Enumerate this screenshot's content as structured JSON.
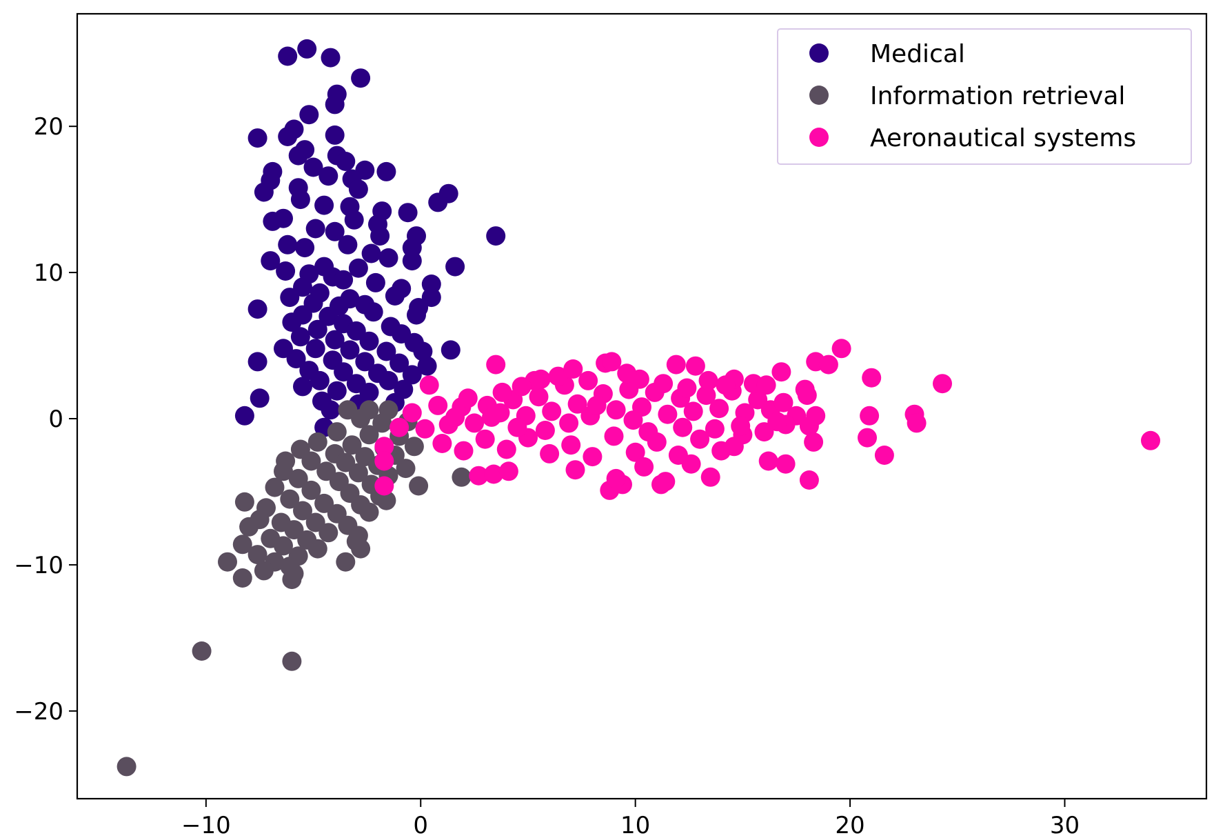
{
  "chart_data": {
    "type": "scatter",
    "title": "",
    "xlabel": "",
    "ylabel": "",
    "xlim": [
      -16,
      36.6
    ],
    "ylim": [
      -26,
      27.7
    ],
    "xticks": [
      -10,
      0,
      10,
      20,
      30
    ],
    "yticks": [
      -20,
      -10,
      0,
      10,
      20
    ],
    "xtick_labels": [
      "−10",
      "0",
      "10",
      "20",
      "30"
    ],
    "ytick_labels": [
      "−20",
      "−10",
      "0",
      "10",
      "20"
    ],
    "grid": false,
    "legend_position": "top-right",
    "series": [
      {
        "name": "Medical",
        "color": "#2a0082",
        "points": [
          [
            -5.3,
            25.3
          ],
          [
            -6.2,
            24.8
          ],
          [
            -4.2,
            24.7
          ],
          [
            -2.8,
            23.3
          ],
          [
            -3.9,
            22.2
          ],
          [
            -4.0,
            21.5
          ],
          [
            -5.2,
            20.8
          ],
          [
            -5.9,
            19.8
          ],
          [
            -6.2,
            19.3
          ],
          [
            -7.6,
            19.2
          ],
          [
            -4.0,
            19.4
          ],
          [
            -5.4,
            18.4
          ],
          [
            -5.7,
            18.0
          ],
          [
            -3.9,
            18.0
          ],
          [
            -3.5,
            17.6
          ],
          [
            -6.9,
            16.9
          ],
          [
            -5.0,
            17.2
          ],
          [
            -2.6,
            17.0
          ],
          [
            -1.6,
            16.9
          ],
          [
            -7.0,
            16.3
          ],
          [
            -4.3,
            16.6
          ],
          [
            -3.2,
            16.4
          ],
          [
            -5.7,
            15.8
          ],
          [
            -2.9,
            15.7
          ],
          [
            -7.3,
            15.5
          ],
          [
            -5.6,
            15.0
          ],
          [
            1.3,
            15.4
          ],
          [
            0.8,
            14.8
          ],
          [
            -4.5,
            14.6
          ],
          [
            -3.3,
            14.5
          ],
          [
            -1.8,
            14.2
          ],
          [
            -0.6,
            14.1
          ],
          [
            -6.4,
            13.7
          ],
          [
            -6.9,
            13.5
          ],
          [
            -3.1,
            13.6
          ],
          [
            -2.0,
            13.3
          ],
          [
            -4.9,
            13.0
          ],
          [
            -4.0,
            12.8
          ],
          [
            -1.9,
            12.5
          ],
          [
            -0.2,
            12.5
          ],
          [
            3.5,
            12.5
          ],
          [
            -6.2,
            11.9
          ],
          [
            -5.4,
            11.7
          ],
          [
            -3.4,
            11.9
          ],
          [
            -0.4,
            11.7
          ],
          [
            -2.3,
            11.3
          ],
          [
            -1.5,
            11.0
          ],
          [
            -0.4,
            10.8
          ],
          [
            -7.0,
            10.8
          ],
          [
            -6.3,
            10.1
          ],
          [
            -4.5,
            10.4
          ],
          [
            -2.9,
            10.3
          ],
          [
            1.6,
            10.4
          ],
          [
            -5.2,
            9.9
          ],
          [
            -4.1,
            9.7
          ],
          [
            -3.6,
            9.5
          ],
          [
            -2.1,
            9.3
          ],
          [
            -5.5,
            9.0
          ],
          [
            0.5,
            9.2
          ],
          [
            -0.9,
            8.9
          ],
          [
            -6.1,
            8.3
          ],
          [
            -4.7,
            8.6
          ],
          [
            -3.3,
            8.2
          ],
          [
            -1.2,
            8.4
          ],
          [
            0.5,
            8.3
          ],
          [
            -5.0,
            7.9
          ],
          [
            -3.8,
            7.7
          ],
          [
            -2.6,
            7.8
          ],
          [
            -0.1,
            7.6
          ],
          [
            -7.6,
            7.5
          ],
          [
            -5.5,
            7.1
          ],
          [
            -4.3,
            7.0
          ],
          [
            -2.2,
            7.3
          ],
          [
            -0.2,
            7.1
          ],
          [
            -6.0,
            6.6
          ],
          [
            -3.6,
            6.5
          ],
          [
            -1.4,
            6.3
          ],
          [
            -4.8,
            6.1
          ],
          [
            -3.0,
            6.0
          ],
          [
            -0.9,
            5.8
          ],
          [
            -5.6,
            5.6
          ],
          [
            -4.0,
            5.4
          ],
          [
            -2.4,
            5.3
          ],
          [
            -0.3,
            5.2
          ],
          [
            -6.4,
            4.8
          ],
          [
            -4.9,
            4.8
          ],
          [
            -3.3,
            4.7
          ],
          [
            -1.6,
            4.6
          ],
          [
            1.4,
            4.7
          ],
          [
            0.1,
            4.6
          ],
          [
            -5.8,
            4.1
          ],
          [
            -4.1,
            4.0
          ],
          [
            -2.6,
            3.9
          ],
          [
            -1.0,
            3.8
          ],
          [
            -7.6,
            3.9
          ],
          [
            0.3,
            3.6
          ],
          [
            -5.2,
            3.3
          ],
          [
            -3.6,
            3.2
          ],
          [
            -2.0,
            3.1
          ],
          [
            -0.4,
            3.0
          ],
          [
            -4.7,
            2.6
          ],
          [
            -3.0,
            2.4
          ],
          [
            -1.5,
            2.6
          ],
          [
            -5.5,
            2.2
          ],
          [
            -3.9,
            1.9
          ],
          [
            -2.4,
            1.8
          ],
          [
            -0.8,
            2.0
          ],
          [
            -7.5,
            1.4
          ],
          [
            -4.6,
            1.2
          ],
          [
            -2.9,
            1.0
          ],
          [
            -1.2,
            1.1
          ],
          [
            -4.2,
            0.6
          ],
          [
            -8.2,
            0.2
          ],
          [
            -4.5,
            -0.6
          ]
        ]
      },
      {
        "name": "Information retrieval",
        "color": "#5a4e5e",
        "points": [
          [
            -3.4,
            0.6
          ],
          [
            -2.4,
            0.6
          ],
          [
            -1.5,
            0.6
          ],
          [
            -2.8,
            0.0
          ],
          [
            -1.8,
            -0.3
          ],
          [
            -0.6,
            -0.2
          ],
          [
            -3.9,
            -0.9
          ],
          [
            -2.4,
            -1.1
          ],
          [
            -1.0,
            -1.2
          ],
          [
            -4.8,
            -1.6
          ],
          [
            -3.2,
            -1.8
          ],
          [
            -1.7,
            -2.0
          ],
          [
            -0.3,
            -1.9
          ],
          [
            -5.6,
            -2.1
          ],
          [
            -4.0,
            -2.4
          ],
          [
            -2.6,
            -2.6
          ],
          [
            -1.2,
            -2.5
          ],
          [
            -5.1,
            -2.9
          ],
          [
            -3.5,
            -3.0
          ],
          [
            -2.0,
            -3.2
          ],
          [
            -0.7,
            -3.4
          ],
          [
            -6.3,
            -2.9
          ],
          [
            -4.4,
            -3.6
          ],
          [
            -2.9,
            -3.7
          ],
          [
            -1.5,
            -3.9
          ],
          [
            -6.4,
            -3.6
          ],
          [
            -5.7,
            -4.1
          ],
          [
            -3.8,
            -4.3
          ],
          [
            -2.3,
            -4.5
          ],
          [
            -0.1,
            -4.6
          ],
          [
            1.9,
            -4.0
          ],
          [
            -6.8,
            -4.7
          ],
          [
            -5.1,
            -4.9
          ],
          [
            -3.3,
            -5.1
          ],
          [
            -1.9,
            -5.3
          ],
          [
            -8.2,
            -5.7
          ],
          [
            -6.1,
            -5.5
          ],
          [
            -4.5,
            -5.8
          ],
          [
            -2.8,
            -5.9
          ],
          [
            -1.6,
            -5.6
          ],
          [
            -7.2,
            -6.1
          ],
          [
            -5.5,
            -6.3
          ],
          [
            -3.9,
            -6.5
          ],
          [
            -2.4,
            -6.4
          ],
          [
            -7.5,
            -6.9
          ],
          [
            -6.5,
            -7.1
          ],
          [
            -4.9,
            -7.1
          ],
          [
            -3.4,
            -7.3
          ],
          [
            -8.0,
            -7.4
          ],
          [
            -5.9,
            -7.6
          ],
          [
            -4.3,
            -7.8
          ],
          [
            -2.9,
            -8.0
          ],
          [
            -7.0,
            -8.2
          ],
          [
            -5.3,
            -8.3
          ],
          [
            -3.0,
            -8.4
          ],
          [
            -8.3,
            -8.6
          ],
          [
            -6.4,
            -8.7
          ],
          [
            -4.8,
            -8.9
          ],
          [
            -2.8,
            -8.9
          ],
          [
            -7.6,
            -9.3
          ],
          [
            -5.7,
            -9.4
          ],
          [
            -6.8,
            -9.8
          ],
          [
            -9.0,
            -9.8
          ],
          [
            -3.5,
            -9.8
          ],
          [
            -6.1,
            -10.1
          ],
          [
            -7.3,
            -10.4
          ],
          [
            -5.9,
            -10.6
          ],
          [
            -8.3,
            -10.9
          ],
          [
            -6.0,
            -11.0
          ],
          [
            -10.2,
            -15.9
          ],
          [
            -6.0,
            -16.6
          ],
          [
            -13.7,
            -23.8
          ]
        ]
      },
      {
        "name": "Aeronautical systems",
        "color": "#ff07a9",
        "points": [
          [
            0.4,
            2.3
          ],
          [
            -1.7,
            -1.9
          ],
          [
            -1.7,
            -2.9
          ],
          [
            -1.7,
            -4.6
          ],
          [
            -1.0,
            -0.6
          ],
          [
            -0.4,
            0.4
          ],
          [
            0.2,
            -0.7
          ],
          [
            0.8,
            0.9
          ],
          [
            1.3,
            -0.4
          ],
          [
            1.9,
            0.8
          ],
          [
            2.5,
            -0.3
          ],
          [
            3.1,
            0.9
          ],
          [
            3.5,
            3.7
          ],
          [
            3.7,
            0.4
          ],
          [
            4.3,
            1.3
          ],
          [
            4.9,
            0.2
          ],
          [
            5.5,
            1.5
          ],
          [
            6.1,
            0.5
          ],
          [
            6.7,
            2.3
          ],
          [
            7.3,
            1.0
          ],
          [
            7.9,
            0.2
          ],
          [
            8.5,
            1.7
          ],
          [
            9.1,
            0.6
          ],
          [
            9.7,
            2.0
          ],
          [
            10.3,
            0.8
          ],
          [
            10.9,
            1.8
          ],
          [
            11.5,
            0.3
          ],
          [
            12.1,
            1.4
          ],
          [
            12.7,
            0.5
          ],
          [
            13.3,
            1.6
          ],
          [
            13.9,
            0.7
          ],
          [
            14.5,
            1.9
          ],
          [
            15.1,
            0.4
          ],
          [
            15.7,
            1.3
          ],
          [
            16.3,
            0.6
          ],
          [
            16.9,
            1.1
          ],
          [
            17.5,
            0.2
          ],
          [
            18.1,
            -0.5
          ],
          [
            18.4,
            0.2
          ],
          [
            18.3,
            -1.6
          ],
          [
            1.0,
            -1.7
          ],
          [
            2.0,
            -2.2
          ],
          [
            3.0,
            -1.4
          ],
          [
            4.0,
            -2.1
          ],
          [
            5.0,
            -1.3
          ],
          [
            6.0,
            -2.4
          ],
          [
            7.0,
            -1.8
          ],
          [
            8.0,
            -2.6
          ],
          [
            9.0,
            -1.2
          ],
          [
            10.0,
            -2.3
          ],
          [
            11.0,
            -1.6
          ],
          [
            12.0,
            -2.5
          ],
          [
            13.0,
            -1.4
          ],
          [
            14.0,
            -2.2
          ],
          [
            15.0,
            -1.1
          ],
          [
            16.0,
            -0.9
          ],
          [
            17.0,
            -0.4
          ],
          [
            2.7,
            -3.9
          ],
          [
            3.4,
            -3.8
          ],
          [
            4.1,
            -3.6
          ],
          [
            7.2,
            -3.5
          ],
          [
            8.8,
            -4.9
          ],
          [
            9.4,
            -4.5
          ],
          [
            9.1,
            -4.1
          ],
          [
            10.4,
            -3.3
          ],
          [
            11.2,
            -4.5
          ],
          [
            11.4,
            -4.3
          ],
          [
            12.6,
            -3.1
          ],
          [
            13.5,
            -4.0
          ],
          [
            14.6,
            -1.9
          ],
          [
            16.2,
            -2.9
          ],
          [
            17.0,
            -3.1
          ],
          [
            18.1,
            -4.2
          ],
          [
            17.9,
            2.0
          ],
          [
            18.0,
            1.6
          ],
          [
            18.4,
            3.9
          ],
          [
            19.0,
            3.7
          ],
          [
            19.6,
            4.8
          ],
          [
            20.8,
            -1.3
          ],
          [
            20.9,
            0.2
          ],
          [
            21.0,
            2.8
          ],
          [
            21.6,
            -2.5
          ],
          [
            23.0,
            0.3
          ],
          [
            23.1,
            -0.3
          ],
          [
            24.3,
            2.4
          ],
          [
            34.0,
            -1.5
          ],
          [
            3.8,
            1.8
          ],
          [
            5.6,
            2.7
          ],
          [
            6.4,
            2.9
          ],
          [
            7.1,
            3.4
          ],
          [
            8.6,
            3.8
          ],
          [
            8.9,
            3.9
          ],
          [
            10.2,
            2.7
          ],
          [
            11.9,
            3.7
          ],
          [
            12.8,
            3.6
          ],
          [
            13.4,
            2.6
          ],
          [
            14.6,
            2.7
          ],
          [
            15.5,
            2.4
          ],
          [
            16.1,
            2.3
          ],
          [
            16.8,
            3.2
          ],
          [
            5.3,
            2.6
          ],
          [
            4.7,
            2.2
          ],
          [
            9.6,
            3.1
          ],
          [
            7.8,
            2.6
          ],
          [
            11.3,
            2.4
          ],
          [
            12.4,
            2.1
          ],
          [
            14.2,
            2.3
          ],
          [
            6.9,
            -0.3
          ],
          [
            8.2,
            0.9
          ],
          [
            9.9,
            -0.1
          ],
          [
            12.2,
            -0.6
          ],
          [
            14.9,
            -0.5
          ],
          [
            3.3,
            0.1
          ],
          [
            5.8,
            -0.8
          ],
          [
            10.6,
            -0.9
          ],
          [
            13.7,
            -0.7
          ],
          [
            16.6,
            -0.2
          ],
          [
            1.6,
            0.1
          ],
          [
            2.2,
            1.4
          ],
          [
            4.5,
            -0.6
          ]
        ]
      }
    ]
  }
}
